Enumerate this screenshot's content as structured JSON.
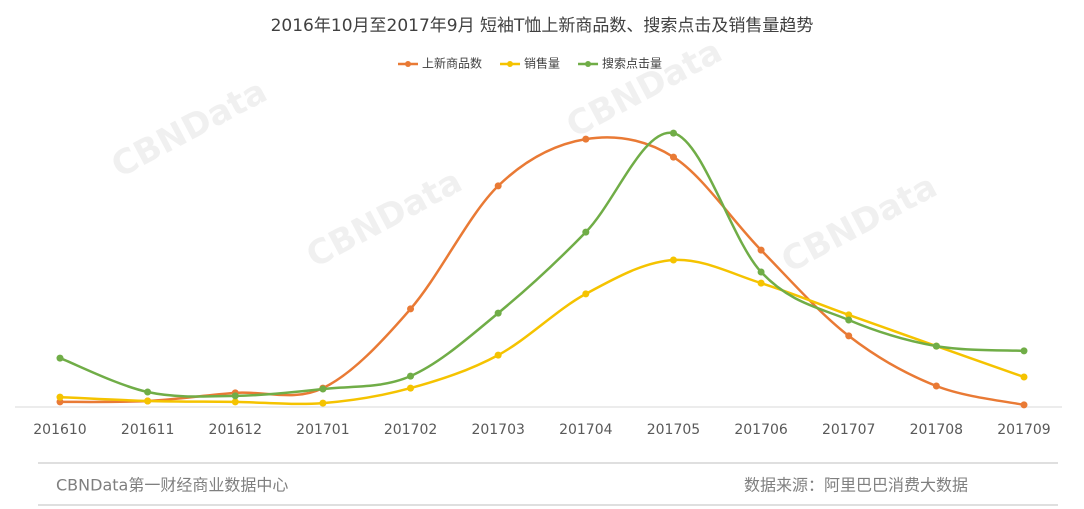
{
  "chart_data": {
    "type": "line",
    "title": "2016年10月至2017年9月 短袖T恤上新商品数、搜索点击及销售量趋势",
    "categories": [
      "201610",
      "201611",
      "201612",
      "201701",
      "201702",
      "201703",
      "201704",
      "201705",
      "201706",
      "201707",
      "201708",
      "201709"
    ],
    "series": [
      {
        "name": "上新商品数",
        "color": "#e97a35",
        "values": [
          1.7,
          2,
          4.7,
          6.3,
          32.7,
          73.7,
          89.3,
          83.3,
          52.3,
          23.7,
          7,
          0.7
        ]
      },
      {
        "name": "销售量",
        "color": "#f5c300",
        "values": [
          3.3,
          2,
          1.7,
          1.3,
          6.3,
          17.3,
          37.7,
          49,
          41.3,
          30.7,
          20.3,
          10
        ]
      },
      {
        "name": "搜索点击量",
        "color": "#70ad47",
        "values": [
          16.3,
          5,
          3.7,
          6,
          10.3,
          31.3,
          58.3,
          91.3,
          45,
          29,
          20.3,
          18.7
        ]
      }
    ],
    "ylim": [
      0,
      100
    ],
    "smooth": true,
    "legend": "top",
    "watermark": "CBNData",
    "footer_left": "CBNData第一财经商业数据中心",
    "footer_right": "数据来源：阿里巴巴消费大数据"
  }
}
